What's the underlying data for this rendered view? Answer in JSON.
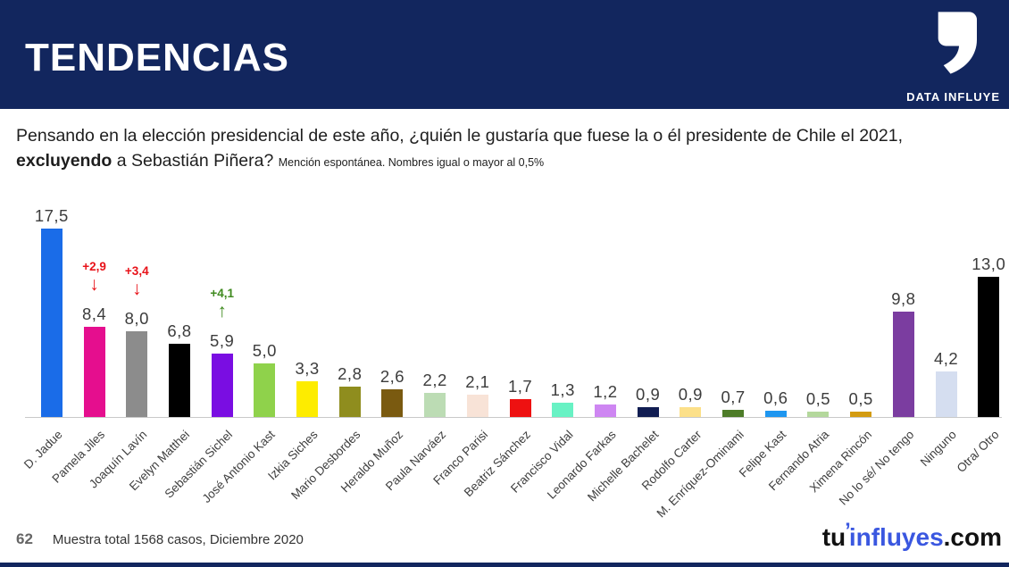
{
  "header": {
    "title": "TENDENCIAS",
    "brand": "DATA INFLUYE"
  },
  "question": {
    "part1": "Pensando en la elección presidencial de este año, ¿quién le gustaría que fuese la o él presidente de Chile el 2021, ",
    "bold": "excluyendo",
    "part2": " a Sebastián Piñera? ",
    "note": "Mención espontánea. Nombres igual o mayor al 0,5%"
  },
  "chart_data": {
    "type": "bar",
    "title": "",
    "xlabel": "",
    "ylabel": "",
    "ylim": [
      0,
      18
    ],
    "grid": false,
    "legend": false,
    "categories": [
      "D. Jadue",
      "Pamela Jiles",
      "Joaquín Lavín",
      "Evelyn Matthei",
      "Sebastián Sichel",
      "José Antonio Kast",
      "Izkia Siches",
      "Mario Desbordes",
      "Heraldo Muñoz",
      "Paula Narváez",
      "Franco Parisi",
      "Beatriz Sánchez",
      "Francisco Vidal",
      "Leonardo Farkas",
      "Michelle Bachelet",
      "Rodolfo Carter",
      "M. Enríquez-Ominami",
      "Felipe Kast",
      "Fernando Atria",
      "Ximena Rincón",
      "No lo sé/ No tengo",
      "Ninguno",
      "Otra/ Otro"
    ],
    "values": [
      17.5,
      8.4,
      8.0,
      6.8,
      5.9,
      5.0,
      3.3,
      2.8,
      2.6,
      2.2,
      2.1,
      1.7,
      1.3,
      1.2,
      0.9,
      0.9,
      0.7,
      0.6,
      0.5,
      0.5,
      9.8,
      4.2,
      13.0
    ],
    "value_labels": [
      "17,5",
      "8,4",
      "8,0",
      "6,8",
      "5,9",
      "5,0",
      "3,3",
      "2,8",
      "2,6",
      "2,2",
      "2,1",
      "1,7",
      "1,3",
      "1,2",
      "0,9",
      "0,9",
      "0,7",
      "0,6",
      "0,5",
      "0,5",
      "9,8",
      "4,2",
      "13,0"
    ],
    "bar_colors": [
      "#1a6ce8",
      "#e50e8e",
      "#8c8c8c",
      "#000000",
      "#7a0de2",
      "#8fd24b",
      "#fdec00",
      "#8f8d1e",
      "#7a5a10",
      "#bcdcb4",
      "#f8e3d7",
      "#ee1111",
      "#68f2c4",
      "#ce86f2",
      "#111d52",
      "#fce089",
      "#4d7c28",
      "#1e96f0",
      "#b4d89c",
      "#d39b11",
      "#7b3da0",
      "#d5def0",
      "#000000"
    ],
    "annotations": [
      {
        "index": 1,
        "label": "+2,9",
        "direction": "down",
        "color": "#e81219"
      },
      {
        "index": 2,
        "label": "+3,4",
        "direction": "down",
        "color": "#e81219"
      },
      {
        "index": 4,
        "label": "+4,1",
        "direction": "up",
        "color": "#3f8a1f"
      }
    ]
  },
  "footer": {
    "page": "62",
    "note": "Muestra total 1568 casos,  Diciembre 2020",
    "brand": {
      "part1": "tu",
      "apostrophe": "’",
      "part2": "influyes",
      "part3": ".com",
      "accent_color": "#3a57e0"
    }
  }
}
